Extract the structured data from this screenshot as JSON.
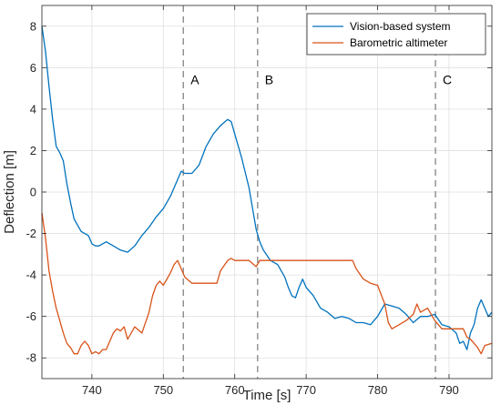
{
  "chart_data": {
    "type": "line",
    "xlabel": "Time [s]",
    "ylabel": "Deflection [m]",
    "xlim": [
      733,
      796
    ],
    "ylim": [
      -9,
      9
    ],
    "xticks": [
      740,
      750,
      760,
      770,
      780,
      790
    ],
    "yticks": [
      -8,
      -6,
      -4,
      -2,
      0,
      2,
      4,
      6,
      8
    ],
    "grid": true,
    "legend_position": "top-right",
    "colors": {
      "axis": "#262626",
      "grid": "#dfdfdf",
      "event_line": "#8c8c8c"
    },
    "events": [
      {
        "label": "A",
        "x": 752.8
      },
      {
        "label": "B",
        "x": 763.2
      },
      {
        "label": "C",
        "x": 788.1
      }
    ],
    "series": [
      {
        "name": "Vision-based system",
        "color": "#0072BD",
        "x": [
          733.0,
          733.5,
          734.0,
          734.5,
          735.0,
          735.5,
          736.0,
          736.5,
          737.0,
          737.5,
          738.0,
          738.5,
          739.0,
          739.5,
          740.0,
          740.5,
          741.0,
          742.0,
          743.0,
          744.0,
          745.0,
          746.0,
          747.0,
          748.0,
          749.0,
          750.0,
          751.0,
          752.0,
          752.5,
          753.0,
          754.0,
          755.0,
          756.0,
          757.0,
          758.0,
          759.0,
          759.5,
          760.0,
          761.0,
          762.0,
          762.5,
          763.0,
          763.5,
          764.0,
          765.0,
          766.0,
          767.0,
          767.5,
          768.0,
          768.5,
          769.0,
          769.5,
          770.0,
          771.0,
          772.0,
          773.0,
          774.0,
          775.0,
          776.0,
          777.0,
          778.0,
          779.0,
          780.0,
          781.0,
          782.0,
          783.0,
          784.0,
          785.0,
          786.0,
          787.0,
          788.0,
          789.0,
          790.0,
          791.0,
          791.5,
          792.0,
          792.5,
          793.0,
          793.5,
          794.0,
          794.5,
          795.0,
          795.5,
          796.0
        ],
        "values": [
          8.0,
          6.8,
          5.1,
          3.5,
          2.2,
          1.9,
          1.5,
          0.4,
          -0.5,
          -1.3,
          -1.6,
          -1.9,
          -2.0,
          -2.1,
          -2.5,
          -2.6,
          -2.6,
          -2.4,
          -2.6,
          -2.8,
          -2.9,
          -2.6,
          -2.1,
          -1.7,
          -1.2,
          -0.8,
          -0.2,
          0.6,
          1.0,
          0.9,
          0.9,
          1.3,
          2.2,
          2.8,
          3.2,
          3.5,
          3.4,
          2.8,
          1.6,
          0.2,
          -0.8,
          -1.8,
          -2.4,
          -2.8,
          -3.3,
          -3.5,
          -4.1,
          -4.6,
          -5.0,
          -5.1,
          -4.6,
          -4.2,
          -4.6,
          -5.0,
          -5.6,
          -5.8,
          -6.1,
          -6.0,
          -6.1,
          -6.3,
          -6.3,
          -6.4,
          -6.0,
          -5.4,
          -5.5,
          -5.6,
          -5.9,
          -6.3,
          -6.0,
          -6.0,
          -5.9,
          -6.4,
          -6.5,
          -6.8,
          -7.3,
          -7.2,
          -7.6,
          -6.8,
          -6.4,
          -5.6,
          -5.2,
          -5.6,
          -6.0,
          -5.8
        ]
      },
      {
        "name": "Barometric altimeter",
        "color": "#D95319",
        "x": [
          733.0,
          733.5,
          734.0,
          734.5,
          735.0,
          735.5,
          736.0,
          736.5,
          737.0,
          737.5,
          738.0,
          738.5,
          739.0,
          739.5,
          740.0,
          740.5,
          741.0,
          741.5,
          742.0,
          743.0,
          743.5,
          744.0,
          744.5,
          745.0,
          746.0,
          747.0,
          748.0,
          748.5,
          749.0,
          749.5,
          750.0,
          751.0,
          751.5,
          752.0,
          752.5,
          753.0,
          754.0,
          755.0,
          756.0,
          757.0,
          757.5,
          758.0,
          759.0,
          759.5,
          760.0,
          761.0,
          762.0,
          763.0,
          763.5,
          764.0,
          765.0,
          770.0,
          775.0,
          776.5,
          777.0,
          778.0,
          779.0,
          780.0,
          781.0,
          781.5,
          782.0,
          783.0,
          784.0,
          785.0,
          785.5,
          786.0,
          787.0,
          788.0,
          789.0,
          792.0,
          792.5,
          793.0,
          794.0,
          794.5,
          795.0,
          796.0
        ],
        "values": [
          -1.0,
          -2.2,
          -3.8,
          -4.8,
          -5.6,
          -6.2,
          -6.8,
          -7.3,
          -7.5,
          -7.8,
          -7.8,
          -7.4,
          -7.2,
          -7.4,
          -7.8,
          -7.7,
          -7.8,
          -7.6,
          -7.6,
          -6.8,
          -6.6,
          -6.7,
          -6.5,
          -7.1,
          -6.5,
          -6.8,
          -5.8,
          -5.0,
          -4.5,
          -4.3,
          -4.5,
          -3.9,
          -3.5,
          -3.3,
          -3.7,
          -4.1,
          -4.4,
          -4.4,
          -4.4,
          -4.4,
          -4.4,
          -3.8,
          -3.3,
          -3.2,
          -3.3,
          -3.3,
          -3.3,
          -3.6,
          -3.3,
          -3.3,
          -3.3,
          -3.3,
          -3.3,
          -3.3,
          -3.7,
          -4.2,
          -4.4,
          -4.5,
          -5.4,
          -6.3,
          -6.6,
          -6.4,
          -6.2,
          -5.9,
          -5.4,
          -5.8,
          -5.6,
          -6.2,
          -6.6,
          -6.6,
          -7.0,
          -7.1,
          -7.5,
          -7.8,
          -7.4,
          -7.3
        ]
      }
    ]
  }
}
